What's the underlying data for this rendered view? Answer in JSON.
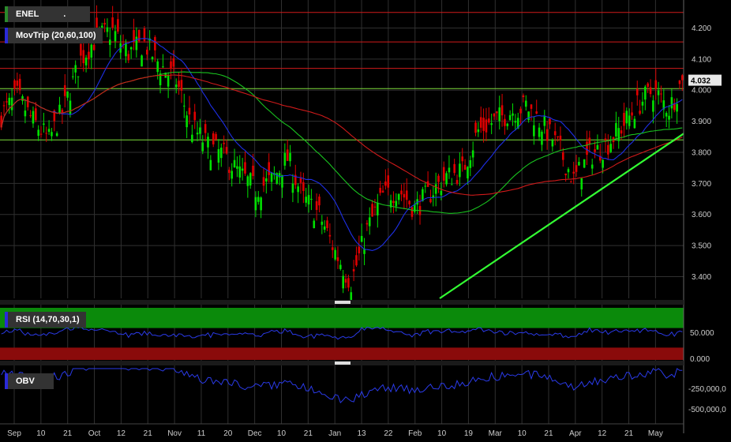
{
  "symbol": "ENEL",
  "legend_symbol_extra": ".",
  "indicators": {
    "price": "MovTrip (20,60,100)",
    "rsi": "RSI (14,70,30,1)",
    "obv": "OBV"
  },
  "colors": {
    "up": "#00e000",
    "down": "#e00000",
    "ma20": "#1e2fe6",
    "ma60": "#19c21f",
    "ma100": "#d01a1a",
    "trendline": "#33ff33",
    "hline_red": "#d01a1a",
    "hline_green": "#7ddc3a",
    "rsi_overbought": "#0b8a0b",
    "rsi_oversold": "#8a0b0b",
    "rsi_line": "#2a3ae8",
    "obv_line": "#2a3ae8",
    "grid": "#303030",
    "last_price_bg": "#e8e8e8"
  },
  "last_price": "4.032",
  "chart_data": [
    {
      "type": "candlestick",
      "panel": "price",
      "title": "ENEL",
      "x_labels": [
        "Sep",
        "10",
        "21",
        "Oct",
        "12",
        "21",
        "Nov",
        "11",
        "20",
        "Dec",
        "10",
        "21",
        "Jan",
        "13",
        "22",
        "Feb",
        "10",
        "19",
        "Mar",
        "10",
        "21",
        "Apr",
        "12",
        "21",
        "May"
      ],
      "y_ticks": [
        "4.200",
        "4.100",
        "4.000",
        "3.900",
        "3.800",
        "3.700",
        "3.600",
        "3.500",
        "3.400"
      ],
      "ylim": [
        3.33,
        4.29
      ],
      "approx_close_path": [
        [
          0,
          3.92
        ],
        [
          6,
          3.98
        ],
        [
          12,
          3.9
        ],
        [
          18,
          3.84
        ],
        [
          24,
          3.95
        ],
        [
          30,
          4.1
        ],
        [
          36,
          4.17
        ],
        [
          42,
          4.19
        ],
        [
          48,
          4.12
        ],
        [
          54,
          4.15
        ],
        [
          60,
          4.08
        ],
        [
          66,
          4.03
        ],
        [
          72,
          3.88
        ],
        [
          78,
          3.82
        ],
        [
          84,
          3.79
        ],
        [
          90,
          3.73
        ],
        [
          96,
          3.68
        ],
        [
          102,
          3.71
        ],
        [
          108,
          3.78
        ],
        [
          114,
          3.65
        ],
        [
          120,
          3.6
        ],
        [
          126,
          3.48
        ],
        [
          132,
          3.38
        ],
        [
          138,
          3.55
        ],
        [
          144,
          3.66
        ],
        [
          150,
          3.68
        ],
        [
          156,
          3.62
        ],
        [
          162,
          3.67
        ],
        [
          168,
          3.72
        ],
        [
          174,
          3.74
        ],
        [
          180,
          3.87
        ],
        [
          186,
          3.9
        ],
        [
          192,
          3.93
        ],
        [
          198,
          3.95
        ],
        [
          204,
          3.89
        ],
        [
          210,
          3.82
        ],
        [
          216,
          3.71
        ],
        [
          222,
          3.79
        ],
        [
          228,
          3.82
        ],
        [
          234,
          3.88
        ],
        [
          240,
          3.95
        ],
        [
          246,
          4.0
        ],
        [
          252,
          3.94
        ],
        [
          257,
          4.03
        ]
      ],
      "moving_averages": [
        {
          "name": "MA20",
          "period": 20
        },
        {
          "name": "MA60",
          "period": 60
        },
        {
          "name": "MA100",
          "period": 100
        }
      ],
      "horizontal_lines": [
        {
          "value": 4.25,
          "color": "red"
        },
        {
          "value": 4.155,
          "color": "red"
        },
        {
          "value": 4.07,
          "color": "red"
        },
        {
          "value": 4.005,
          "color": "green"
        },
        {
          "value": 3.84,
          "color": "green"
        }
      ],
      "trendline": {
        "from": [
          3.33,
          "Feb 10"
        ],
        "to": [
          3.86,
          "May"
        ]
      },
      "last_value": 4.032,
      "grid": true
    },
    {
      "type": "line",
      "panel": "rsi",
      "title": "RSI (14,70,30,1)",
      "y_ticks": [
        "50.000",
        "0.000"
      ],
      "bands": {
        "overbought": 70,
        "oversold": 30
      }
    },
    {
      "type": "line",
      "panel": "obv",
      "title": "OBV",
      "y_ticks": [
        "-250,000,0",
        "-500,000,0"
      ]
    }
  ]
}
